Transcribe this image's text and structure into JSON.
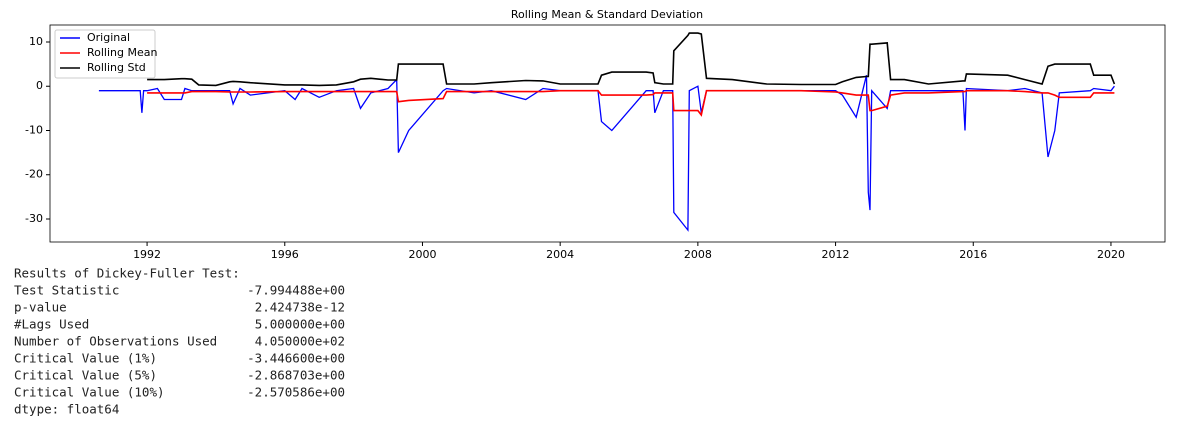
{
  "chart_data": {
    "type": "line",
    "title": "Rolling Mean & Standard Deviation",
    "x": [
      1990.6,
      1991.8,
      1991.85,
      1991.9,
      1992.0,
      1992.3,
      1992.5,
      1993.0,
      1993.1,
      1993.3,
      1993.5,
      1994.0,
      1994.4,
      1994.5,
      1994.7,
      1995.0,
      1996.0,
      1996.3,
      1996.5,
      1997.0,
      1997.5,
      1998.0,
      1998.2,
      1998.5,
      1999.0,
      1999.25,
      1999.3,
      1999.6,
      2000.6,
      2000.7,
      2001.5,
      2002.0,
      2003.0,
      2003.5,
      2004.0,
      2005.1,
      2005.2,
      2005.5,
      2006.5,
      2006.7,
      2006.75,
      2007.0,
      2007.27,
      2007.3,
      2007.71,
      2007.75,
      2008.0,
      2008.1,
      2008.25,
      2009.0,
      2010.0,
      2011.0,
      2012.0,
      2012.2,
      2012.6,
      2012.9,
      2012.95,
      2013.0,
      2013.05,
      2013.5,
      2013.6,
      2014.0,
      2014.7,
      2015.7,
      2015.76,
      2015.8,
      2017.0,
      2017.5,
      2018.0,
      2018.17,
      2018.37,
      2018.5,
      2019.4,
      2019.5,
      2020.0,
      2020.1
    ],
    "series": [
      {
        "name": "Original",
        "color": "#0000ff",
        "values": [
          -1,
          -1,
          -6,
          -1,
          -1,
          -0.5,
          -3,
          -3,
          -0.5,
          -1,
          -1,
          -1,
          -1,
          -4,
          -0.5,
          -2,
          -1,
          -3,
          -0.5,
          -2.5,
          -1,
          -0.5,
          -5,
          -1.5,
          -0.5,
          1.5,
          -15,
          -10,
          -1,
          -0.5,
          -1.5,
          -1,
          -3,
          -0.5,
          -1,
          -1,
          -8,
          -10,
          -1,
          -1,
          -6,
          -1,
          -1,
          -28.5,
          -32.5,
          -1,
          0,
          -6,
          -1,
          -1,
          -1,
          -1,
          -1,
          -2,
          -7,
          2.5,
          -24,
          -28,
          -1,
          -5,
          -1,
          -1,
          -1,
          -1,
          -10,
          -0.5,
          -1,
          -0.5,
          -1.5,
          -16,
          -10,
          -1.5,
          -1,
          -0.5,
          -1,
          0
        ]
      },
      {
        "name": "Rolling Mean",
        "color": "#ff0000",
        "values": [
          null,
          null,
          null,
          null,
          -1.5,
          -1.5,
          -1.5,
          -1.5,
          -1.5,
          -1.2,
          -1.2,
          -1.2,
          -1.3,
          -1.3,
          -1.3,
          -1.3,
          -1.2,
          -1.2,
          -1.2,
          -1.2,
          -1.2,
          -1.2,
          -1.2,
          -1.2,
          -1.2,
          -1.2,
          -3.5,
          -3.2,
          -2.8,
          -1.2,
          -1.2,
          -1.2,
          -1.2,
          -1.2,
          -1.0,
          -1.0,
          -2,
          -2,
          -2,
          -1.9,
          -1.5,
          -1.5,
          -1.5,
          -5.5,
          -5.5,
          -5.5,
          -5.5,
          -6.5,
          -1,
          -1,
          -1,
          -1,
          -1.3,
          -1.5,
          -2,
          -2,
          -2,
          -5.5,
          -5.5,
          -4.5,
          -2,
          -1.5,
          -1.5,
          -1.2,
          -1.2,
          -1,
          -1,
          -1.2,
          -1.5,
          -1.5,
          -2,
          -2.5,
          -2.5,
          -1.5,
          -1.5,
          -1.5
        ]
      },
      {
        "name": "Rolling Std",
        "color": "#000000",
        "values": [
          null,
          null,
          null,
          null,
          1.5,
          1.5,
          1.5,
          1.7,
          1.7,
          1.6,
          0.3,
          0.2,
          1.0,
          1.1,
          1.0,
          0.8,
          0.3,
          0.3,
          0.3,
          0.2,
          0.3,
          1.0,
          1.6,
          1.8,
          1.4,
          1.4,
          5.0,
          5.0,
          5.0,
          0.5,
          0.5,
          0.8,
          1.3,
          1.2,
          0.5,
          0.5,
          2.5,
          3.2,
          3.2,
          3.0,
          0.8,
          0.5,
          0.5,
          8,
          11.5,
          12,
          12,
          11.8,
          1.8,
          1.5,
          0.5,
          0.4,
          0.4,
          1.0,
          2,
          2.2,
          2.2,
          9.5,
          9.5,
          9.8,
          1.5,
          1.5,
          0.5,
          1.2,
          1.2,
          2.8,
          2.5,
          1.5,
          0.5,
          4.5,
          5,
          5,
          5,
          2.5,
          2.5,
          0.5
        ]
      }
    ],
    "xlim": [
      1989.18,
      2021.57
    ],
    "xticks": [
      1992,
      1996,
      2000,
      2004,
      2008,
      2012,
      2016,
      2020
    ],
    "ylim": [
      -35.2,
      13.84
    ],
    "yticks": [
      10,
      0,
      -10,
      -20,
      -30
    ],
    "legend": "upper left"
  },
  "output": {
    "heading": "Results of Dickey-Fuller Test:",
    "rows": [
      [
        "Test Statistic",
        "-7.994488e+00"
      ],
      [
        "p-value",
        "2.424738e-12"
      ],
      [
        "#Lags Used",
        "5.000000e+00"
      ],
      [
        "Number of Observations Used",
        "4.050000e+02"
      ],
      [
        "Critical Value (1%)",
        "-3.446600e+00"
      ],
      [
        "Critical Value (5%)",
        "-2.868703e+00"
      ],
      [
        "Critical Value (10%)",
        "-2.570586e+00"
      ]
    ],
    "footer": "dtype: float64"
  }
}
